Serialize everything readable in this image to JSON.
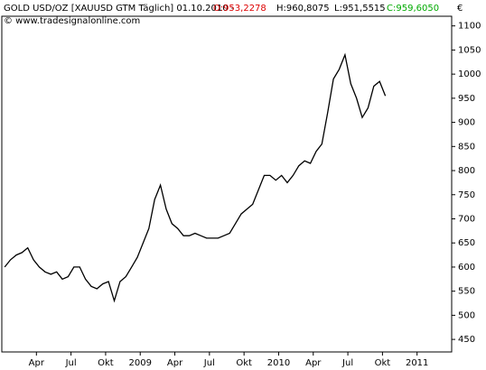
{
  "header": {
    "title": "GOLD USD/OZ [XAUUSD GTM  Täglich] 01.10.2010 -",
    "open": "O:953,2278",
    "high": "H:960,8075",
    "low": "L:951,5515",
    "close": "C:959,6050",
    "copyright": "© www.tradesignalonline.com"
  },
  "chart_data": {
    "type": "line",
    "color": "#000000",
    "y_axis_label": "€",
    "categories": [
      null,
      null,
      null,
      null,
      null,
      null,
      "Apr",
      null,
      null,
      null,
      null,
      null,
      "Jul",
      null,
      null,
      null,
      null,
      null,
      "Okt",
      null,
      null,
      null,
      null,
      null,
      "2009",
      null,
      null,
      null,
      null,
      null,
      "Apr",
      null,
      null,
      null,
      null,
      null,
      "Jul",
      null,
      null,
      null,
      null,
      null,
      "Okt",
      null,
      null,
      null,
      null,
      null,
      "2010",
      null,
      null,
      null,
      null,
      null,
      "Apr",
      null,
      null,
      null,
      null,
      null,
      "Jul",
      null,
      null,
      null,
      null,
      null,
      "Okt",
      null,
      null,
      null,
      null,
      null,
      "2011",
      null,
      null,
      null,
      null,
      null
    ],
    "values": [
      600,
      615,
      625,
      630,
      640,
      615,
      600,
      590,
      585,
      590,
      575,
      580,
      600,
      600,
      575,
      560,
      555,
      565,
      570,
      530,
      570,
      580,
      600,
      620,
      650,
      680,
      740,
      770,
      720,
      690,
      680,
      665,
      665,
      670,
      665,
      660,
      660,
      660,
      665,
      670,
      690,
      710,
      720,
      730,
      760,
      790,
      790,
      780,
      790,
      775,
      790,
      810,
      820,
      815,
      840,
      855,
      920,
      990,
      1010,
      1040,
      980,
      950,
      910,
      930,
      975,
      985,
      955,
      null,
      null,
      null,
      null,
      null,
      null,
      null,
      null,
      null,
      null,
      null
    ],
    "ylim": [
      424,
      1120
    ],
    "yticks": [
      450,
      500,
      550,
      600,
      650,
      700,
      750,
      800,
      850,
      900,
      950,
      1000,
      1050,
      1100
    ]
  }
}
